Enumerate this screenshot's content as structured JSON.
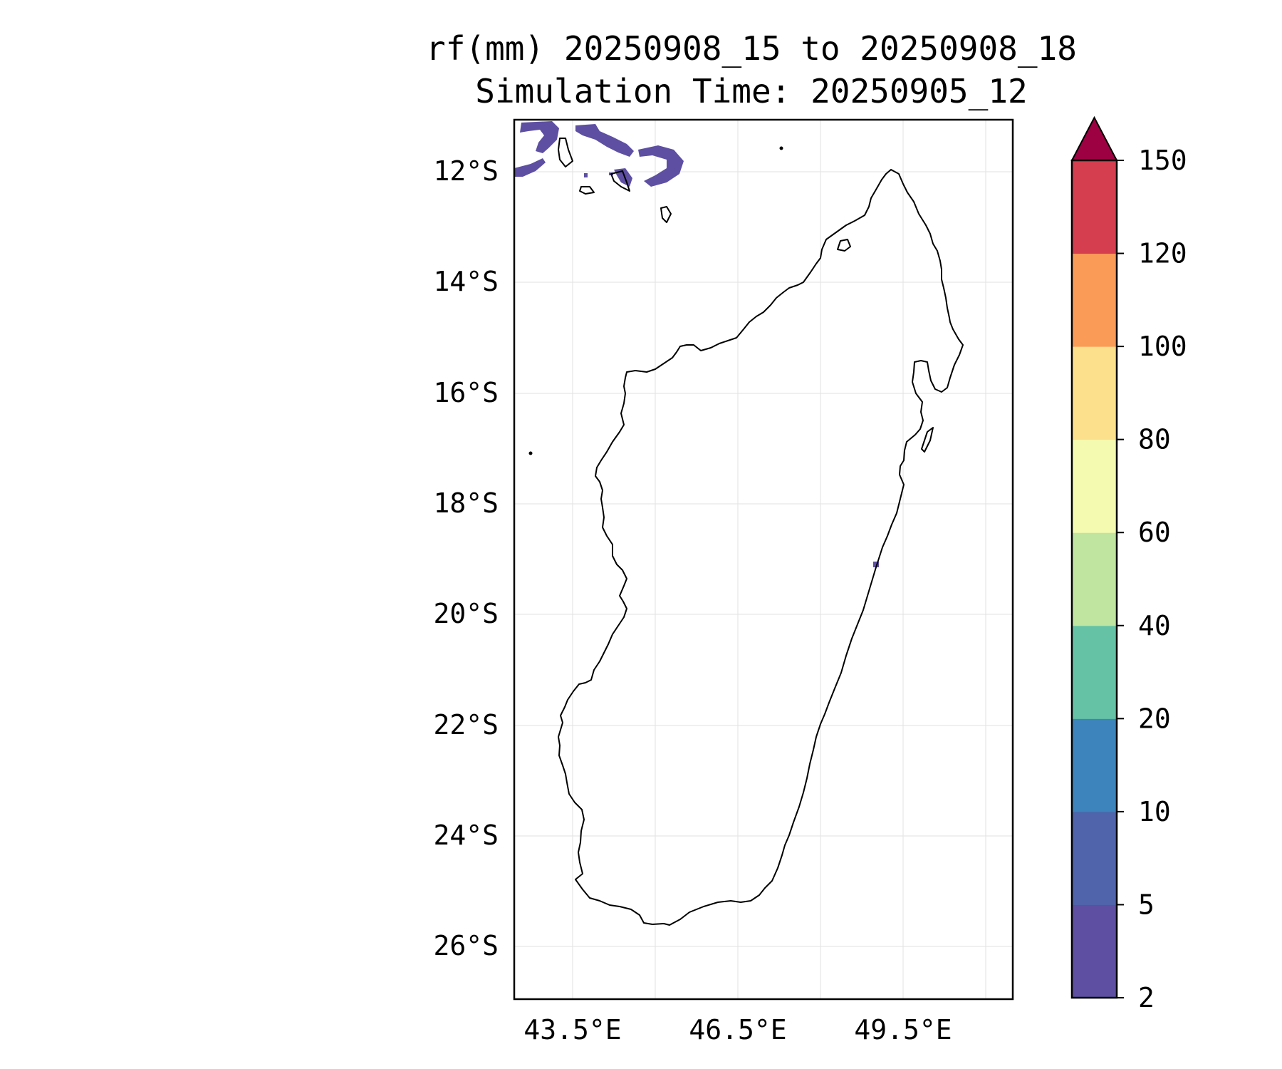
{
  "title": {
    "line1": "rf(mm) 20250908_15 to 20250908_18",
    "line2": "Simulation Time: 20250905_12"
  },
  "map": {
    "region": "Madagascar",
    "lat_ticks": [
      "12°S",
      "14°S",
      "16°S",
      "18°S",
      "20°S",
      "22°S",
      "24°S",
      "26°S"
    ],
    "lon_ticks": [
      "43.5°E",
      "46.5°E",
      "49.5°E"
    ],
    "grid": true,
    "coastline_color": "#000000",
    "rain_color": "#5e4fa2"
  },
  "colorbar": {
    "extend": "max",
    "extend_color": "#9e0142",
    "labels": [
      "2",
      "5",
      "10",
      "20",
      "40",
      "60",
      "80",
      "100",
      "120",
      "150"
    ],
    "colors": [
      "#5e4fa2",
      "#4f64ab",
      "#3c84bb",
      "#66c2a5",
      "#bfe5a0",
      "#f4fbb0",
      "#fde08b",
      "#fa9b58",
      "#d53e4f"
    ]
  }
}
